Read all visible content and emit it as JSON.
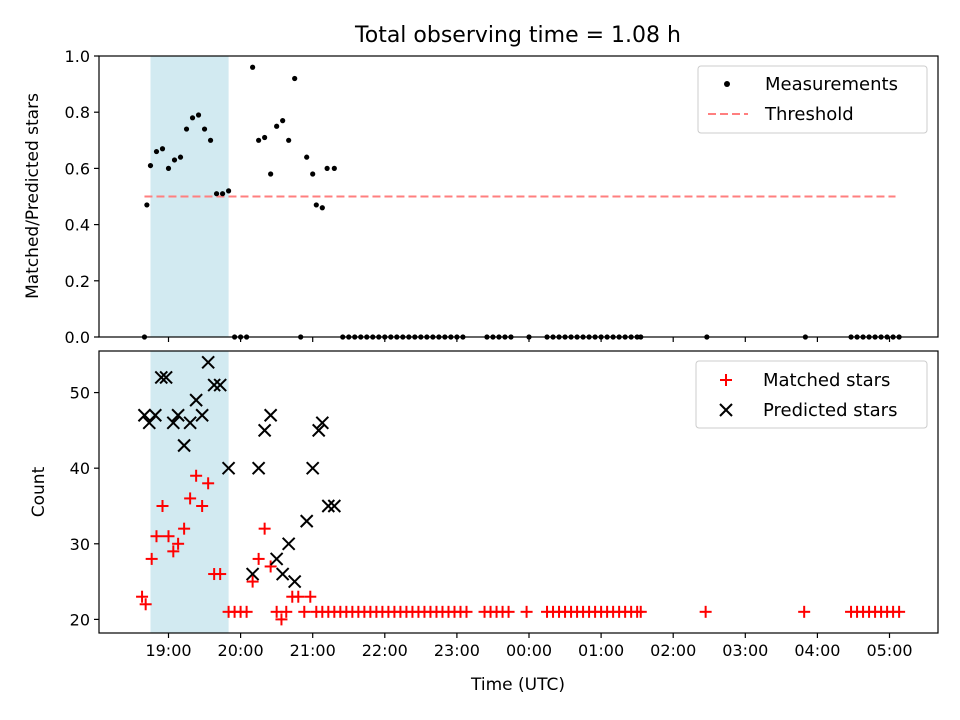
{
  "chart_data": {
    "title": "Total observing time = 1.08 h",
    "xlabel": "Time (UTC)",
    "x_ticks": [
      "19:00",
      "20:00",
      "21:00",
      "22:00",
      "23:00",
      "00:00",
      "01:00",
      "02:00",
      "03:00",
      "04:00",
      "05:00"
    ],
    "shaded_span": {
      "x_start": "18:45",
      "x_end": "19:50",
      "color": "#add8e6"
    },
    "panels": [
      {
        "type": "scatter",
        "ylabel": "Matched/Predicted stars",
        "ylim": [
          0,
          1.0
        ],
        "y_ticks": [
          "0.0",
          "0.2",
          "0.4",
          "0.6",
          "0.8",
          "1.0"
        ],
        "legend_position": "upper right",
        "series": [
          {
            "name": "Measurements",
            "marker": "dot",
            "color": "#000000",
            "points": [
              [
                "18:40",
                0.0
              ],
              [
                "18:42",
                0.47
              ],
              [
                "18:45",
                0.61
              ],
              [
                "18:50",
                0.66
              ],
              [
                "18:55",
                0.67
              ],
              [
                "19:00",
                0.6
              ],
              [
                "19:05",
                0.63
              ],
              [
                "19:10",
                0.64
              ],
              [
                "19:15",
                0.74
              ],
              [
                "19:20",
                0.78
              ],
              [
                "19:25",
                0.79
              ],
              [
                "19:30",
                0.74
              ],
              [
                "19:35",
                0.7
              ],
              [
                "19:40",
                0.51
              ],
              [
                "19:45",
                0.51
              ],
              [
                "19:50",
                0.52
              ],
              [
                "19:55",
                0.0
              ],
              [
                "20:00",
                0.0
              ],
              [
                "20:05",
                0.0
              ],
              [
                "20:10",
                0.96
              ],
              [
                "20:15",
                0.7
              ],
              [
                "20:20",
                0.71
              ],
              [
                "20:25",
                0.58
              ],
              [
                "20:30",
                0.75
              ],
              [
                "20:35",
                0.77
              ],
              [
                "20:40",
                0.7
              ],
              [
                "20:45",
                0.92
              ],
              [
                "20:50",
                0.0
              ],
              [
                "20:55",
                0.64
              ],
              [
                "21:00",
                0.58
              ],
              [
                "21:03",
                0.47
              ],
              [
                "21:08",
                0.46
              ],
              [
                "21:12",
                0.6
              ],
              [
                "21:18",
                0.6
              ],
              [
                "21:25",
                0.0
              ],
              [
                "21:30",
                0.0
              ],
              [
                "21:35",
                0.0
              ],
              [
                "21:40",
                0.0
              ],
              [
                "21:45",
                0.0
              ],
              [
                "21:50",
                0.0
              ],
              [
                "21:55",
                0.0
              ],
              [
                "22:00",
                0.0
              ],
              [
                "22:05",
                0.0
              ],
              [
                "22:10",
                0.0
              ],
              [
                "22:15",
                0.0
              ],
              [
                "22:20",
                0.0
              ],
              [
                "22:25",
                0.0
              ],
              [
                "22:30",
                0.0
              ],
              [
                "22:35",
                0.0
              ],
              [
                "22:40",
                0.0
              ],
              [
                "22:45",
                0.0
              ],
              [
                "22:50",
                0.0
              ],
              [
                "22:55",
                0.0
              ],
              [
                "23:00",
                0.0
              ],
              [
                "23:05",
                0.0
              ],
              [
                "23:25",
                0.0
              ],
              [
                "23:30",
                0.0
              ],
              [
                "23:35",
                0.0
              ],
              [
                "23:40",
                0.0
              ],
              [
                "23:45",
                0.0
              ],
              [
                "00:00",
                0.0
              ],
              [
                "00:15",
                0.0
              ],
              [
                "00:20",
                0.0
              ],
              [
                "00:25",
                0.0
              ],
              [
                "00:30",
                0.0
              ],
              [
                "00:35",
                0.0
              ],
              [
                "00:40",
                0.0
              ],
              [
                "00:45",
                0.0
              ],
              [
                "00:50",
                0.0
              ],
              [
                "00:55",
                0.0
              ],
              [
                "01:00",
                0.0
              ],
              [
                "01:05",
                0.0
              ],
              [
                "01:10",
                0.0
              ],
              [
                "01:15",
                0.0
              ],
              [
                "01:20",
                0.0
              ],
              [
                "01:25",
                0.0
              ],
              [
                "01:30",
                0.0
              ],
              [
                "01:33",
                0.0
              ],
              [
                "02:28",
                0.0
              ],
              [
                "03:50",
                0.0
              ],
              [
                "04:28",
                0.0
              ],
              [
                "04:33",
                0.0
              ],
              [
                "04:38",
                0.0
              ],
              [
                "04:43",
                0.0
              ],
              [
                "04:48",
                0.0
              ],
              [
                "04:53",
                0.0
              ],
              [
                "04:58",
                0.0
              ],
              [
                "05:03",
                0.0
              ],
              [
                "05:08",
                0.0
              ]
            ]
          },
          {
            "name": "Threshold",
            "type": "line",
            "style": "dashed",
            "color": "#ff7f7f",
            "points": [
              [
                "18:40",
                0.5
              ],
              [
                "05:05",
                0.5
              ]
            ]
          }
        ]
      },
      {
        "type": "scatter",
        "ylabel": "Count",
        "ylim": [
          18.2,
          55.5
        ],
        "y_ticks": [
          "20",
          "30",
          "40",
          "50"
        ],
        "legend_position": "upper right",
        "series": [
          {
            "name": "Matched stars",
            "marker": "plus",
            "color": "#ff0000",
            "points": [
              [
                "18:38",
                23
              ],
              [
                "18:41",
                22
              ],
              [
                "18:46",
                28
              ],
              [
                "18:50",
                31
              ],
              [
                "18:55",
                35
              ],
              [
                "19:00",
                31
              ],
              [
                "19:04",
                29
              ],
              [
                "19:08",
                30
              ],
              [
                "19:13",
                32
              ],
              [
                "19:18",
                36
              ],
              [
                "19:23",
                39
              ],
              [
                "19:28",
                35
              ],
              [
                "19:33",
                38
              ],
              [
                "19:38",
                26
              ],
              [
                "19:43",
                26
              ],
              [
                "19:50",
                21
              ],
              [
                "19:55",
                21
              ],
              [
                "20:00",
                21
              ],
              [
                "20:05",
                21
              ],
              [
                "20:10",
                25
              ],
              [
                "20:15",
                28
              ],
              [
                "20:20",
                32
              ],
              [
                "20:25",
                27
              ],
              [
                "20:30",
                21
              ],
              [
                "20:34",
                20
              ],
              [
                "20:38",
                21
              ],
              [
                "20:43",
                23
              ],
              [
                "20:48",
                23
              ],
              [
                "20:53",
                21
              ],
              [
                "20:58",
                23
              ],
              [
                "21:03",
                21
              ],
              [
                "21:08",
                21
              ],
              [
                "21:13",
                21
              ],
              [
                "21:18",
                21
              ],
              [
                "21:23",
                21
              ],
              [
                "21:28",
                21
              ],
              [
                "21:33",
                21
              ],
              [
                "21:38",
                21
              ],
              [
                "21:43",
                21
              ],
              [
                "21:48",
                21
              ],
              [
                "21:53",
                21
              ],
              [
                "21:58",
                21
              ],
              [
                "22:03",
                21
              ],
              [
                "22:08",
                21
              ],
              [
                "22:13",
                21
              ],
              [
                "22:18",
                21
              ],
              [
                "22:23",
                21
              ],
              [
                "22:28",
                21
              ],
              [
                "22:33",
                21
              ],
              [
                "22:38",
                21
              ],
              [
                "22:43",
                21
              ],
              [
                "22:48",
                21
              ],
              [
                "22:53",
                21
              ],
              [
                "22:58",
                21
              ],
              [
                "23:03",
                21
              ],
              [
                "23:08",
                21
              ],
              [
                "23:23",
                21
              ],
              [
                "23:28",
                21
              ],
              [
                "23:33",
                21
              ],
              [
                "23:38",
                21
              ],
              [
                "23:43",
                21
              ],
              [
                "23:58",
                21
              ],
              [
                "00:15",
                21
              ],
              [
                "00:20",
                21
              ],
              [
                "00:25",
                21
              ],
              [
                "00:30",
                21
              ],
              [
                "00:35",
                21
              ],
              [
                "00:40",
                21
              ],
              [
                "00:45",
                21
              ],
              [
                "00:50",
                21
              ],
              [
                "00:55",
                21
              ],
              [
                "01:00",
                21
              ],
              [
                "01:05",
                21
              ],
              [
                "01:10",
                21
              ],
              [
                "01:15",
                21
              ],
              [
                "01:20",
                21
              ],
              [
                "01:25",
                21
              ],
              [
                "01:30",
                21
              ],
              [
                "01:33",
                21
              ],
              [
                "02:27",
                21
              ],
              [
                "03:49",
                21
              ],
              [
                "04:28",
                21
              ],
              [
                "04:33",
                21
              ],
              [
                "04:38",
                21
              ],
              [
                "04:43",
                21
              ],
              [
                "04:48",
                21
              ],
              [
                "04:53",
                21
              ],
              [
                "04:58",
                21
              ],
              [
                "05:03",
                21
              ],
              [
                "05:08",
                21
              ]
            ]
          },
          {
            "name": "Predicted stars",
            "marker": "x",
            "color": "#000000",
            "points": [
              [
                "18:40",
                47
              ],
              [
                "18:44",
                46
              ],
              [
                "18:49",
                47
              ],
              [
                "18:54",
                52
              ],
              [
                "18:58",
                52
              ],
              [
                "19:04",
                46
              ],
              [
                "19:08",
                47
              ],
              [
                "19:13",
                43
              ],
              [
                "19:18",
                46
              ],
              [
                "19:23",
                49
              ],
              [
                "19:28",
                47
              ],
              [
                "19:33",
                54
              ],
              [
                "19:38",
                51
              ],
              [
                "19:43",
                51
              ],
              [
                "19:50",
                40
              ],
              [
                "20:10",
                26
              ],
              [
                "20:15",
                40
              ],
              [
                "20:20",
                45
              ],
              [
                "20:25",
                47
              ],
              [
                "20:30",
                28
              ],
              [
                "20:35",
                26
              ],
              [
                "20:40",
                30
              ],
              [
                "20:45",
                25
              ],
              [
                "20:55",
                33
              ],
              [
                "21:00",
                40
              ],
              [
                "21:05",
                45
              ],
              [
                "21:08",
                46
              ],
              [
                "21:13",
                35
              ],
              [
                "21:18",
                35
              ]
            ]
          }
        ]
      }
    ]
  }
}
